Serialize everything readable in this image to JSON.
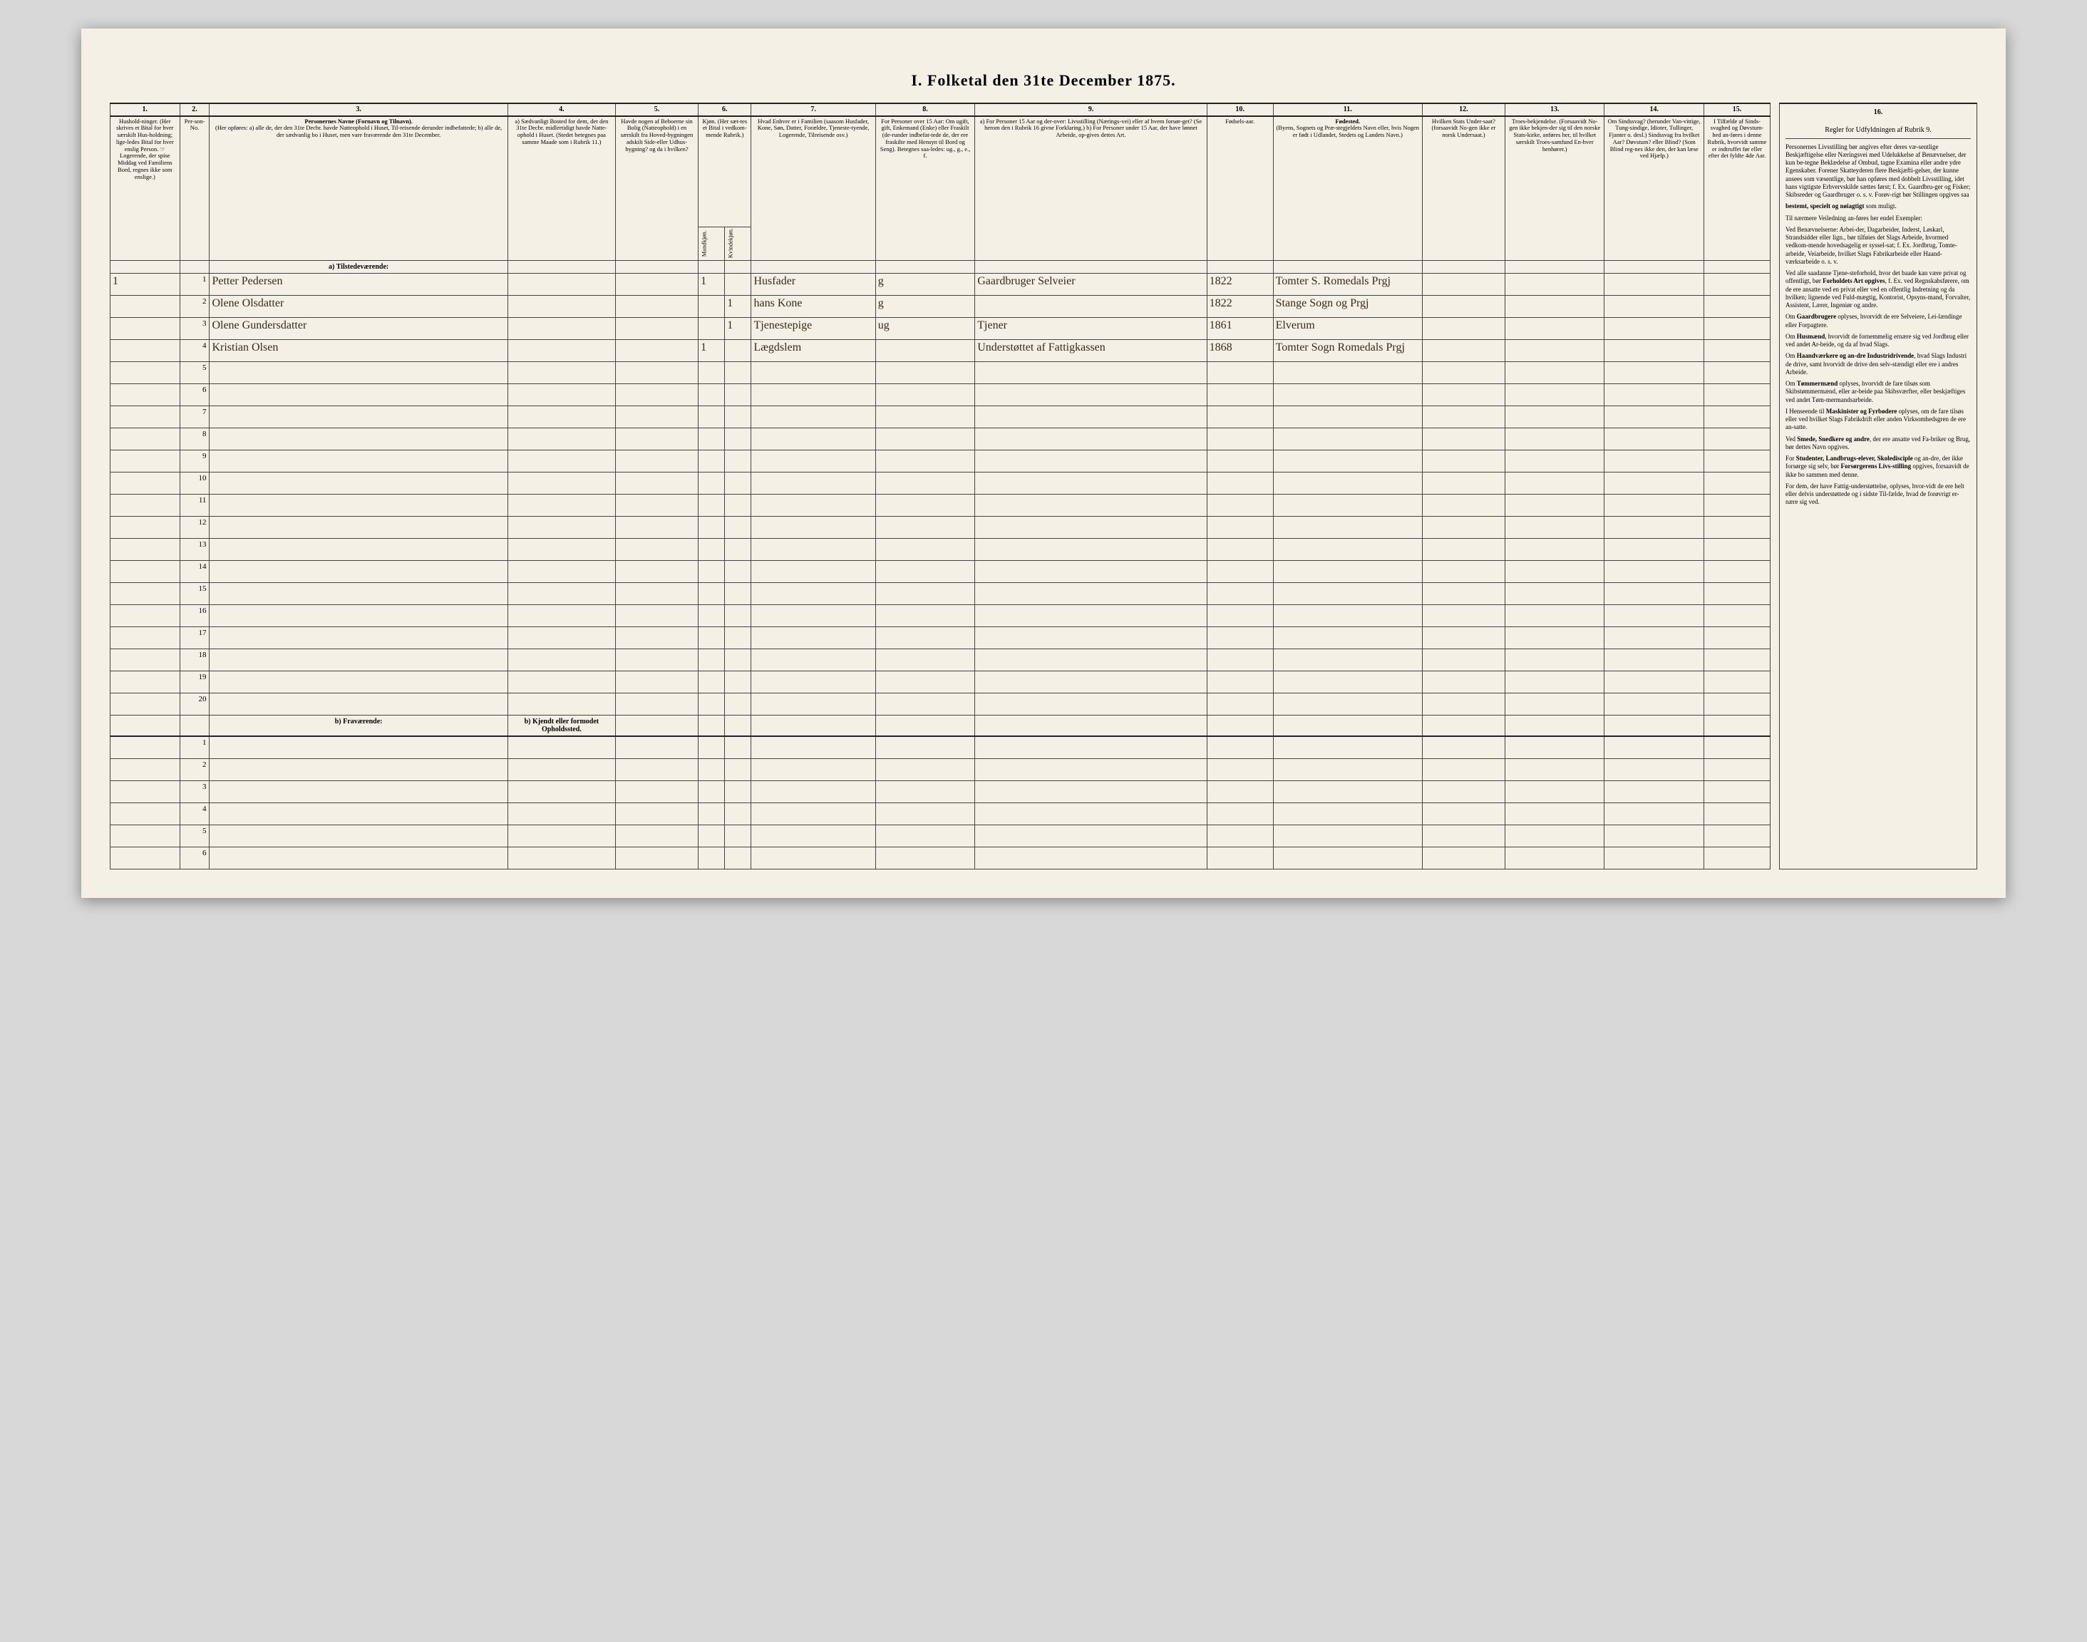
{
  "title": "I. Folketal den 31te December 1875.",
  "columns": {
    "nums": [
      "1.",
      "2.",
      "3.",
      "4.",
      "5.",
      "6.",
      "7.",
      "8.",
      "9.",
      "10.",
      "11.",
      "12.",
      "13.",
      "14.",
      "15."
    ],
    "c1": "Hushold-ninger. (Her skrives et Bital for hver særskilt Hus-holdning; lige-ledes Bital for hver enslig Person. ☞ Logerende, der spise Middag ved Familiens Bord, regnes ikke som enslige.)",
    "c2": "Per-son-No.",
    "c3_title": "Personernes Navne (Fornavn og Tilnavn).",
    "c3_sub": "(Her opføres: a) alle de, der den 31te Decbr. havde Natteophold i Huset, Til-reisende derunder indbefattede; b) alle de, der sædvanlig bo i Huset, men vare fraværende den 31te December.",
    "c4": "a) Sædvanligt Bosted for dem, der den 31te Decbr. midlertidigt havde Natte-ophold i Huset. (Stedet betegnes paa samme Maade som i Rubrik 11.)",
    "c5": "Havde nogen af Beboerne sin Bolig (Natteophold) i en særskilt fra Hoved-bygningen adskilt Side-eller Udhus-bygning? og da i hvilken?",
    "c6": "Kjøn. (Her sæt-tes et Bital i vedkom-mende Rubrik.)",
    "c6a": "Mandkjøn.",
    "c6b": "Kvindekjøn.",
    "c7": "Hvad Enhver er i Familien (saasom Husfader, Kone, Søn, Datter, Forældre, Tjeneste-tyende, Logerende, Tilreisende osv.)",
    "c8": "For Personer over 15 Aar: Om ugift, gift, Enkemand (Enke) eller Fraskilt (de-runder indbefat-tede de, der ere fraskilte med Hensyn til Bord og Seng). Betegnes saa-ledes: ug., g., e., f.",
    "c9": "a) For Personer 15 Aar og der-over: Livsstilling (Nærings-vei) eller af hvem forsør-get? (Se herom den i Rubrik 16 givne Forklaring.) b) For Personer under 15 Aar, der have lønnet Arbeide, op-gives dettes Art.",
    "c10": "Fødsels-aar.",
    "c11_title": "Fødested.",
    "c11_sub": "(Byens, Sognets og Præ-stegjeldets Navn eller, hvis Nogen er født i Udlandet, Stedets og Landets Navn.)",
    "c12": "Hvilken Stats Under-saat? (forsaavidt No-gen ikke er norsk Undersaat.)",
    "c13": "Troes-bekjendelse. (Forsaavidt No-gen ikke bekjen-der sig til den norske Stats-kirke, anføres her, til hvilket særskilt Troes-samfund En-hver henhører.)",
    "c14": "Om Sindssvag? (herunder Van-vittige, Tung-sindige, Idioter, Tullinger, Fjanter o. desl.) Sindssvag fra hvilket Aar? Døvstum? eller Blind? (Som Blind reg-nes ikke den, der kan læse ved Hjælp.)",
    "c15": "I Tilfælde af Sinds-svaghed og Døvstum-hed an-føres i denne Rubrik, hvorvidt samme er indtruffet før eller efter det fyldte 4de Aar."
  },
  "section_a": "a) Tilstedeværende:",
  "section_b": "b) Fraværende:",
  "section_b4": "b) Kjendt eller formodet Opholdssted.",
  "rows": [
    {
      "n": "1",
      "pn": "1",
      "name": "Petter Pedersen",
      "c4": "",
      "c5": "",
      "mk": "1",
      "kk": "",
      "fam": "Husfader",
      "civ": "g",
      "liv": "Gaardbruger Selveier",
      "aar": "1822",
      "fsted": "Tomter S. Romedals Prgj"
    },
    {
      "n": "",
      "pn": "2",
      "name": "Olene Olsdatter",
      "c4": "",
      "c5": "",
      "mk": "",
      "kk": "1",
      "fam": "hans Kone",
      "civ": "g",
      "liv": "",
      "aar": "1822",
      "fsted": "Stange Sogn og Prgj"
    },
    {
      "n": "",
      "pn": "3",
      "name": "Olene Gundersdatter",
      "c4": "",
      "c5": "",
      "mk": "",
      "kk": "1",
      "fam": "Tjenestepige",
      "civ": "ug",
      "liv": "Tjener",
      "aar": "1861",
      "fsted": "Elverum"
    },
    {
      "n": "",
      "pn": "4",
      "name": "Kristian Olsen",
      "c4": "",
      "c5": "",
      "mk": "1",
      "kk": "",
      "fam": "Lægdslem",
      "civ": "",
      "liv": "Understøttet af Fattigkassen",
      "aar": "1868",
      "fsted": "Tomter Sogn Romedals Prgj"
    }
  ],
  "instructions": {
    "num": "16.",
    "heading": "Regler for Udfyldningen af Rubrik 9.",
    "paras": [
      "Personernes Livsstilling bør angives efter deres væ-sentlige Beskjæftigelse eller Næringsvei med Udelukkelse af Benævnelser, der kun be-tegne Beklædelse af Ombud, tagne Examina eller andre ydre Egenskaber. Forener Skatteyderen flere Beskjæfti-gelser, der kunne ansees som væsentlige, bør han opføres med dobbelt Livsstilling, idet hans vigtigste Erhvervskilde sættes først; f. Ex. Gaardbru-ger og Fisker; Skibsreder og Gaardbruger o. s. v. Forøv-rigt bør Stillingen opgives saa",
      "<b>bestemt, specielt og nøiagtigt</b> som muligt.",
      "Til nærmere Veiledning an-føres her endel Exempler:",
      "Ved Benævnelserne: Arbei-der, Dagarbeider, Inderst, Løskarl, Strandsidder eller lign., bør tilføies det Slags Arbeide, hvormed vedkom-mende hovedsagelig er syssel-sat; f. Ex. Jordbrug, Tomte-arbeide, Veiarbeide, hvilket Slags Fabrikarbeide eller Haand-værksarbeide o. s. v.",
      "Ved alle saadanne Tjene-steforhold, hvor det baade kan være privat og offentligt, bør <b>Forholdets Art opgives</b>, f. Ex. ved Regnskabsførere, om de ere ansatte ved en privat eller ved en offentlig Indretning og da hvilken; lignende ved Fuld-mægtig, Kontorist, Opsyns-mand, Forvalter, Assistent, Lærer, Ingeniør og andre.",
      "Om <b>Gaardbrugere</b> oplyses, hvorvidt de ere Selveiere, Lei-lændinge eller Forpagtere.",
      "Om <b>Husmænd</b>, hvorvidt de fornemmelig ernære sig ved Jordbrug eller ved andet Ar-beide, og da af hvad Slags.",
      "Om <b>Haandværkere og an-dre Industridrivende</b>, hvad Slags Industri de drive, samt hvorvidt de drive den selv-stændigt eller ere i andres Arbeide.",
      "Om <b>Tømmermænd</b> oplyses, hvorvidt de fare tilsøs som Skibstømmermænd, eller ar-beide paa Skibsværfter, eller beskjæftiges ved andet Tøm-mermandsarbeide.",
      "I Henseende til <b>Maskinister og Fyrbødere</b> oplyses, om de fare tilsøs eller ved hvilket Slags Fabrikdrift eller anden Virksomhedsgren de ere an-satte.",
      "Ved <b>Smede, Snedkere og andre</b>, der ere ansatte ved Fa-briker og Brug, bør dettes Navn opgives.",
      "For <b>Studenter, Landbrugs-elever, Skoledisciple</b> og an-dre, der ikke forsørge sig selv, bør <b>Forsørgerens Livs-stilling</b> opgives, forsaavidt de ikke bo sammen med denne.",
      "For dem, der have Fattig-understøttelse, oplyses, hvor-vidt de ere helt eller delvis understøttede og i sidste Til-fælde, hvad de forøvrigt er-nære sig ved."
    ]
  }
}
